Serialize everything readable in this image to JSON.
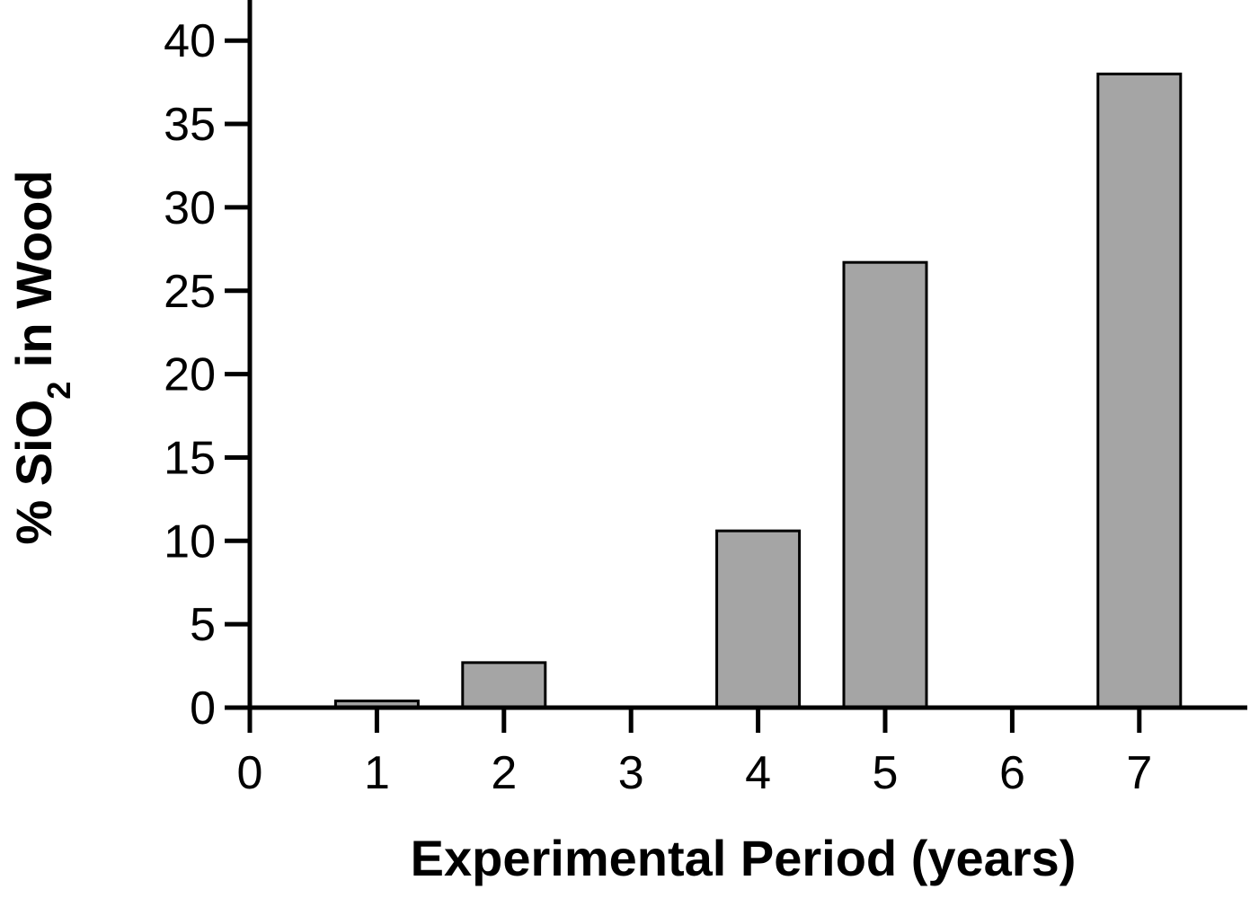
{
  "chart_data": {
    "type": "bar",
    "x": [
      1,
      2,
      4,
      5,
      7
    ],
    "values": [
      0.4,
      2.7,
      10.6,
      26.7,
      38.0
    ],
    "xlabel": "Experimental Period (years)",
    "ylabel": {
      "prefix": "% SiO",
      "subscript": "2",
      "suffix": " in Wood"
    },
    "xlim": [
      0,
      7.8
    ],
    "ylim": [
      0,
      42
    ],
    "x_ticks": [
      "0",
      "1",
      "2",
      "3",
      "4",
      "5",
      "6",
      "7"
    ],
    "y_ticks": [
      "0",
      "5",
      "10",
      "15",
      "20",
      "25",
      "30",
      "35",
      "40"
    ],
    "grid": false,
    "legend": "none",
    "bar_color": "#a5a5a5"
  }
}
